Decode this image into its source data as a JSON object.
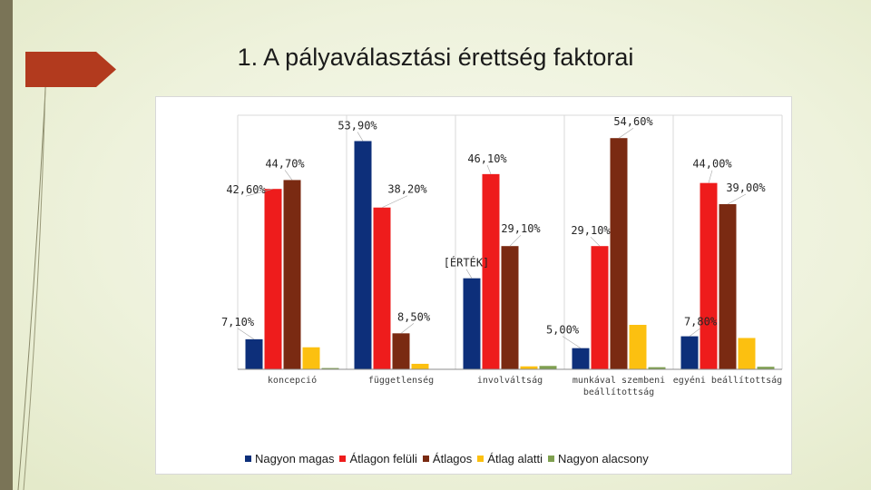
{
  "title": "1. A pályaválasztási érettség faktorai",
  "chart_data": {
    "type": "bar",
    "categories": [
      "koncepció",
      "függetlenség",
      "involváltság",
      "munkával szembeni beállítottság",
      "egyéni beállítottság"
    ],
    "series": [
      {
        "name": "Nagyon magas",
        "color": "#0d2f7a",
        "values": [
          7.1,
          53.9,
          21.5,
          5.0,
          7.8
        ]
      },
      {
        "name": "Átlagon felüli",
        "color": "#ee1c1c",
        "values": [
          42.6,
          38.2,
          46.1,
          29.1,
          44.0
        ]
      },
      {
        "name": "Átlagos",
        "color": "#7a2a12",
        "values": [
          44.7,
          8.5,
          29.1,
          54.6,
          39.0
        ]
      },
      {
        "name": "Átlag alatti",
        "color": "#fcc010",
        "values": [
          5.2,
          1.3,
          0.7,
          10.5,
          7.4
        ]
      },
      {
        "name": "Nagyon alacsony",
        "color": "#7fa050",
        "values": [
          0.3,
          0.1,
          0.8,
          0.5,
          0.6
        ]
      }
    ],
    "data_labels": [
      {
        "text": "7,10%",
        "series": 0,
        "category": 0
      },
      {
        "text": "53,90%",
        "series": 0,
        "category": 1
      },
      {
        "text": "[ÉRTÉK]",
        "series": 0,
        "category": 2
      },
      {
        "text": "5,00%",
        "series": 0,
        "category": 3
      },
      {
        "text": "7,80%",
        "series": 0,
        "category": 4
      },
      {
        "text": "42,60%",
        "series": 1,
        "category": 0
      },
      {
        "text": "38,20%",
        "series": 1,
        "category": 1
      },
      {
        "text": "46,10%",
        "series": 1,
        "category": 2
      },
      {
        "text": "29,10%",
        "series": 1,
        "category": 3
      },
      {
        "text": "44,00%",
        "series": 1,
        "category": 4
      },
      {
        "text": "44,70%",
        "series": 2,
        "category": 0
      },
      {
        "text": "8,50%",
        "series": 2,
        "category": 1
      },
      {
        "text": "29,10%",
        "series": 2,
        "category": 2
      },
      {
        "text": "54,60%",
        "series": 2,
        "category": 3
      },
      {
        "text": "39,00%",
        "series": 2,
        "category": 4
      }
    ],
    "ylim": [
      0,
      60
    ],
    "grid": true,
    "legend_position": "bottom"
  }
}
